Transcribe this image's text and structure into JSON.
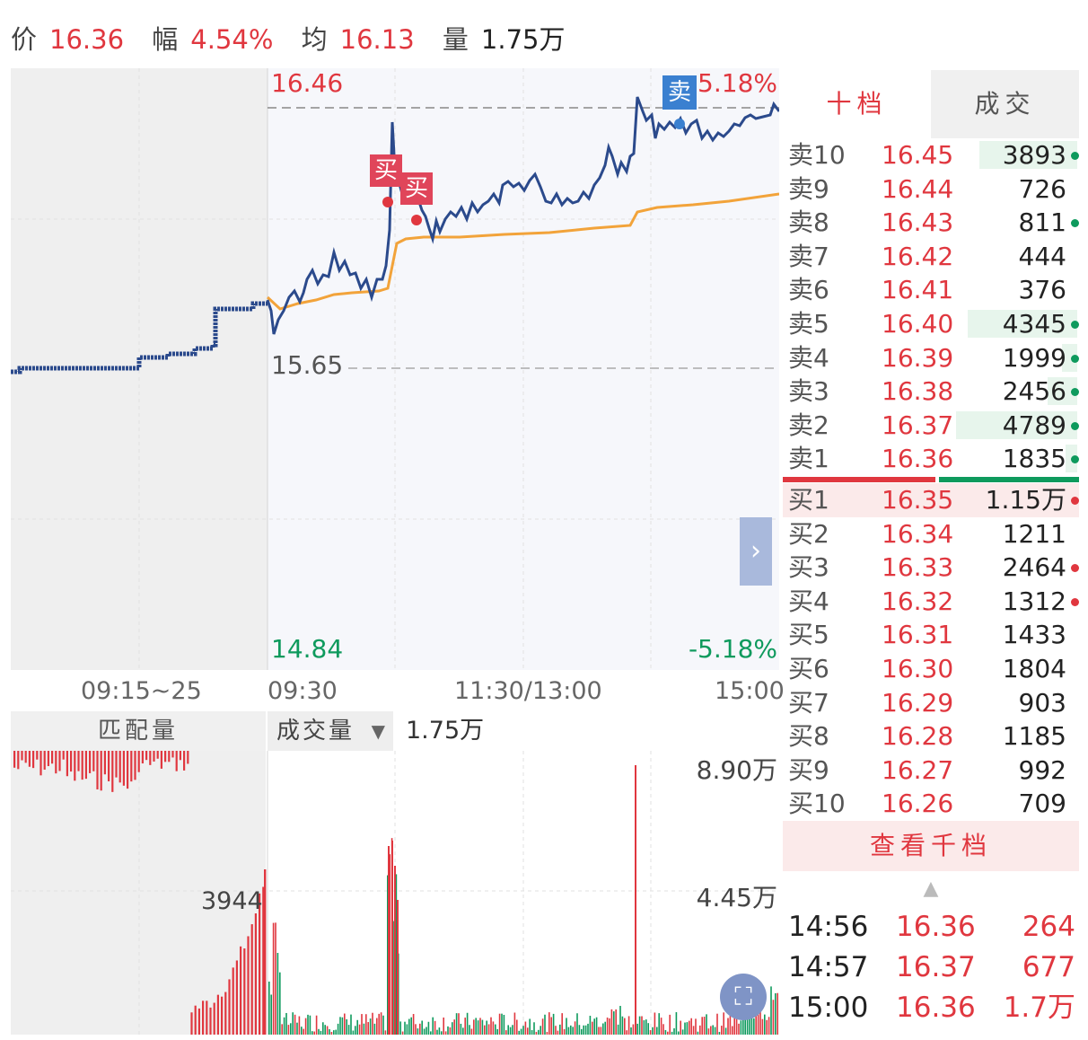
{
  "header": {
    "price_label": "价",
    "price": "16.36",
    "change_label": "幅",
    "change": "4.54%",
    "avg_label": "均",
    "avg": "16.13",
    "vol_label": "量",
    "vol": "1.75万"
  },
  "chart": {
    "price_high": "16.46",
    "pct_high": "5.18%",
    "price_mid": "15.65",
    "price_low": "14.84",
    "pct_low": "-5.18%",
    "buy_marker": "买",
    "sell_marker": "卖",
    "times": {
      "auction": "09:15~25",
      "open": "09:30",
      "noon": "11:30/13:00",
      "close": "15:00"
    },
    "colors": {
      "price_line": "#2b4a8c",
      "avg_line": "#f2a33a",
      "up": "#e0373f",
      "down": "#0e9a5d"
    }
  },
  "volume": {
    "auction_label": "匹配量",
    "selector_label": "成交量",
    "selector_value": "1.75万",
    "auction_peak": "3944",
    "axis_top": "8.90万",
    "axis_mid": "4.45万"
  },
  "book": {
    "tabs": [
      "十档",
      "成交"
    ],
    "asks": [
      {
        "level": "卖10",
        "price": "16.45",
        "qty": "3893",
        "bar": 0.33,
        "dot": "green"
      },
      {
        "level": "卖9",
        "price": "16.44",
        "qty": "726",
        "bar": 0,
        "dot": ""
      },
      {
        "level": "卖8",
        "price": "16.43",
        "qty": "811",
        "bar": 0,
        "dot": "green"
      },
      {
        "level": "卖7",
        "price": "16.42",
        "qty": "444",
        "bar": 0,
        "dot": ""
      },
      {
        "level": "卖6",
        "price": "16.41",
        "qty": "376",
        "bar": 0,
        "dot": ""
      },
      {
        "level": "卖5",
        "price": "16.40",
        "qty": "4345",
        "bar": 0.37,
        "dot": "green"
      },
      {
        "level": "卖4",
        "price": "16.39",
        "qty": "1999",
        "bar": 0.05,
        "dot": "green"
      },
      {
        "level": "卖3",
        "price": "16.38",
        "qty": "2456",
        "bar": 0.1,
        "dot": "green"
      },
      {
        "level": "卖2",
        "price": "16.37",
        "qty": "4789",
        "bar": 0.41,
        "dot": "green"
      },
      {
        "level": "卖1",
        "price": "16.36",
        "qty": "1835",
        "bar": 0.04,
        "dot": "green"
      }
    ],
    "bids": [
      {
        "level": "买1",
        "price": "16.35",
        "qty": "1.15万",
        "bar": 1.0,
        "dot": "red"
      },
      {
        "level": "买2",
        "price": "16.34",
        "qty": "1211",
        "bar": 0,
        "dot": ""
      },
      {
        "level": "买3",
        "price": "16.33",
        "qty": "2464",
        "bar": 0,
        "dot": "red"
      },
      {
        "level": "买4",
        "price": "16.32",
        "qty": "1312",
        "bar": 0,
        "dot": "red"
      },
      {
        "level": "买5",
        "price": "16.31",
        "qty": "1433",
        "bar": 0,
        "dot": ""
      },
      {
        "level": "买6",
        "price": "16.30",
        "qty": "1804",
        "bar": 0,
        "dot": ""
      },
      {
        "level": "买7",
        "price": "16.29",
        "qty": "903",
        "bar": 0,
        "dot": ""
      },
      {
        "level": "买8",
        "price": "16.28",
        "qty": "1185",
        "bar": 0,
        "dot": ""
      },
      {
        "level": "买9",
        "price": "16.27",
        "qty": "992",
        "bar": 0,
        "dot": ""
      },
      {
        "level": "买10",
        "price": "16.26",
        "qty": "709",
        "bar": 0,
        "dot": ""
      }
    ],
    "view_more": "查看千档",
    "trades": [
      {
        "time": "14:56",
        "price": "16.36",
        "vol": "264"
      },
      {
        "time": "14:57",
        "price": "16.37",
        "vol": "677"
      },
      {
        "time": "15:00",
        "price": "16.36",
        "vol": "1.7万"
      }
    ]
  }
}
